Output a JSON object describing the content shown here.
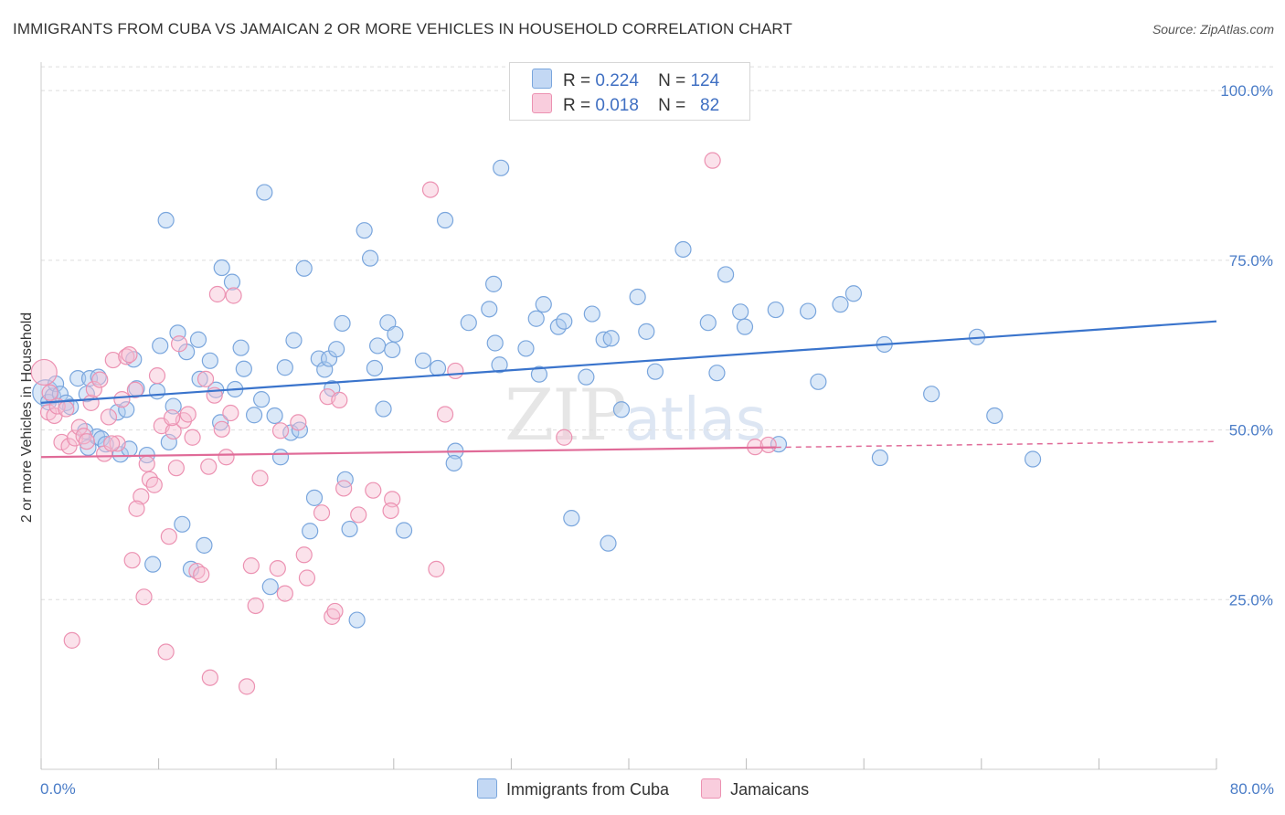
{
  "title": "IMMIGRANTS FROM CUBA VS JAMAICAN 2 OR MORE VEHICLES IN HOUSEHOLD CORRELATION CHART",
  "source": "Source: ZipAtlas.com",
  "watermark": {
    "zip": "ZIP",
    "atlas": "atlas"
  },
  "legend": {
    "series1": {
      "r_label": "R =",
      "r_value": "0.224",
      "n_label": "N =",
      "n_value": "124"
    },
    "series2": {
      "r_label": "R =",
      "r_value": "0.018",
      "n_label": "N =",
      "n_value": "82"
    }
  },
  "colors": {
    "cuba_fill": "#aecbf0",
    "cuba_stroke": "#7aa6dd",
    "cuba_line": "#3a74cc",
    "jam_fill": "#f7bfd3",
    "jam_stroke": "#ec92b2",
    "jam_line": "#e06b98",
    "grid": "#dddddd",
    "tick_text": "#4a7cc7"
  },
  "chart_data": {
    "type": "scatter",
    "xlabel": "",
    "ylabel": "2 or more Vehicles in Household",
    "xlim": [
      0,
      80
    ],
    "ylim": [
      0,
      105
    ],
    "x_tick_labels": [
      "0.0%",
      "80.0%"
    ],
    "y_ticks": [
      25,
      50,
      75,
      100
    ],
    "y_tick_labels": [
      "25.0%",
      "50.0%",
      "75.0%",
      "100.0%"
    ],
    "grid": true,
    "legend_position": "bottom",
    "series": [
      {
        "name": "Immigrants from Cuba",
        "trend": {
          "x0": 0,
          "y0": 54.0,
          "x1": 80,
          "y1": 66.0,
          "solid_until": 80
        },
        "points": [
          [
            0.3,
            55.5
          ],
          [
            0.5,
            54.1
          ],
          [
            0.8,
            55.0
          ],
          [
            1.0,
            56.8
          ],
          [
            1.3,
            55.3
          ],
          [
            1.7,
            54.0
          ],
          [
            2.0,
            53.4
          ],
          [
            2.5,
            57.6
          ],
          [
            3.1,
            55.3
          ],
          [
            3.3,
            57.6
          ],
          [
            3.9,
            57.8
          ],
          [
            3.0,
            49.8
          ],
          [
            3.2,
            47.4
          ],
          [
            3.8,
            49.0
          ],
          [
            4.1,
            48.7
          ],
          [
            4.4,
            47.9
          ],
          [
            5.2,
            52.6
          ],
          [
            5.4,
            46.4
          ],
          [
            5.8,
            53.0
          ],
          [
            6.0,
            47.2
          ],
          [
            6.3,
            60.4
          ],
          [
            6.5,
            56.1
          ],
          [
            7.2,
            46.3
          ],
          [
            7.6,
            30.2
          ],
          [
            7.9,
            55.7
          ],
          [
            8.1,
            62.4
          ],
          [
            8.5,
            80.9
          ],
          [
            8.7,
            48.2
          ],
          [
            9.0,
            53.5
          ],
          [
            9.3,
            64.3
          ],
          [
            9.6,
            36.1
          ],
          [
            9.9,
            61.5
          ],
          [
            10.2,
            29.5
          ],
          [
            10.7,
            63.3
          ],
          [
            10.8,
            57.5
          ],
          [
            11.1,
            33.0
          ],
          [
            11.5,
            60.2
          ],
          [
            11.9,
            55.9
          ],
          [
            12.2,
            51.1
          ],
          [
            12.3,
            73.9
          ],
          [
            13.0,
            71.8
          ],
          [
            13.2,
            56.0
          ],
          [
            13.6,
            62.1
          ],
          [
            13.8,
            59.0
          ],
          [
            14.5,
            52.2
          ],
          [
            15.0,
            54.5
          ],
          [
            15.2,
            85.0
          ],
          [
            15.6,
            26.9
          ],
          [
            15.9,
            52.1
          ],
          [
            16.3,
            46.0
          ],
          [
            16.6,
            59.2
          ],
          [
            17.0,
            49.6
          ],
          [
            17.2,
            63.2
          ],
          [
            17.6,
            50.0
          ],
          [
            17.9,
            73.8
          ],
          [
            18.3,
            35.1
          ],
          [
            18.6,
            40.0
          ],
          [
            18.9,
            60.5
          ],
          [
            19.3,
            58.9
          ],
          [
            19.6,
            60.5
          ],
          [
            19.8,
            56.1
          ],
          [
            20.1,
            61.9
          ],
          [
            20.5,
            65.7
          ],
          [
            20.7,
            42.7
          ],
          [
            21.0,
            35.4
          ],
          [
            21.5,
            22.0
          ],
          [
            22.0,
            79.4
          ],
          [
            22.4,
            75.3
          ],
          [
            22.7,
            59.1
          ],
          [
            22.9,
            62.4
          ],
          [
            23.3,
            53.1
          ],
          [
            23.6,
            65.8
          ],
          [
            23.9,
            61.8
          ],
          [
            24.1,
            64.1
          ],
          [
            24.7,
            35.2
          ],
          [
            26.0,
            60.2
          ],
          [
            27.0,
            59.1
          ],
          [
            27.5,
            80.9
          ],
          [
            28.2,
            46.9
          ],
          [
            28.1,
            45.1
          ],
          [
            29.1,
            65.8
          ],
          [
            30.8,
            71.5
          ],
          [
            30.5,
            67.8
          ],
          [
            30.9,
            62.8
          ],
          [
            31.2,
            59.6
          ],
          [
            31.3,
            88.6
          ],
          [
            33.0,
            62.0
          ],
          [
            33.9,
            58.2
          ],
          [
            33.7,
            66.4
          ],
          [
            34.2,
            68.5
          ],
          [
            35.2,
            65.2
          ],
          [
            35.6,
            66.0
          ],
          [
            36.1,
            37.0
          ],
          [
            37.1,
            57.8
          ],
          [
            37.5,
            67.1
          ],
          [
            38.3,
            63.3
          ],
          [
            38.6,
            33.3
          ],
          [
            38.8,
            63.5
          ],
          [
            39.5,
            53.0
          ],
          [
            40.6,
            69.6
          ],
          [
            41.2,
            64.5
          ],
          [
            41.8,
            58.6
          ],
          [
            43.7,
            76.6
          ],
          [
            45.4,
            65.8
          ],
          [
            46.0,
            58.4
          ],
          [
            46.6,
            72.9
          ],
          [
            47.6,
            67.4
          ],
          [
            47.9,
            65.2
          ],
          [
            50.2,
            47.9
          ],
          [
            50.0,
            67.7
          ],
          [
            52.2,
            67.5
          ],
          [
            52.9,
            57.1
          ],
          [
            54.4,
            68.5
          ],
          [
            55.3,
            70.1
          ],
          [
            57.1,
            45.9
          ],
          [
            57.4,
            62.6
          ],
          [
            60.6,
            55.3
          ],
          [
            63.7,
            63.7
          ],
          [
            64.9,
            52.1
          ],
          [
            67.5,
            45.7
          ]
        ]
      },
      {
        "name": "Jamaicans",
        "trend": {
          "x0": 0,
          "y0": 46.0,
          "x1": 80,
          "y1": 48.3,
          "solid_until": 50
        },
        "points": [
          [
            0.2,
            58.5
          ],
          [
            0.5,
            52.6
          ],
          [
            0.6,
            55.5
          ],
          [
            0.9,
            52.1
          ],
          [
            1.1,
            53.5
          ],
          [
            1.4,
            48.2
          ],
          [
            1.7,
            53.1
          ],
          [
            1.9,
            47.6
          ],
          [
            2.1,
            19.0
          ],
          [
            2.3,
            48.8
          ],
          [
            2.6,
            50.4
          ],
          [
            2.9,
            49.1
          ],
          [
            3.1,
            48.3
          ],
          [
            3.4,
            54.0
          ],
          [
            3.6,
            56.0
          ],
          [
            4.0,
            57.4
          ],
          [
            4.3,
            46.5
          ],
          [
            4.6,
            51.9
          ],
          [
            4.9,
            60.3
          ],
          [
            5.2,
            48.0
          ],
          [
            5.5,
            54.5
          ],
          [
            5.8,
            60.8
          ],
          [
            6.0,
            61.1
          ],
          [
            6.2,
            30.8
          ],
          [
            6.4,
            55.9
          ],
          [
            6.8,
            40.2
          ],
          [
            7.0,
            25.4
          ],
          [
            7.2,
            45.0
          ],
          [
            7.4,
            42.7
          ],
          [
            7.7,
            41.9
          ],
          [
            7.9,
            58.0
          ],
          [
            8.2,
            50.6
          ],
          [
            8.5,
            17.3
          ],
          [
            8.7,
            34.3
          ],
          [
            9.0,
            49.8
          ],
          [
            9.2,
            44.4
          ],
          [
            9.4,
            62.7
          ],
          [
            9.7,
            51.4
          ],
          [
            10.0,
            52.3
          ],
          [
            10.3,
            48.9
          ],
          [
            10.6,
            29.2
          ],
          [
            10.9,
            28.7
          ],
          [
            11.2,
            57.5
          ],
          [
            11.5,
            13.5
          ],
          [
            11.8,
            55.1
          ],
          [
            12.0,
            70.0
          ],
          [
            12.3,
            50.1
          ],
          [
            12.6,
            46.0
          ],
          [
            12.9,
            52.5
          ],
          [
            13.1,
            69.8
          ],
          [
            14.0,
            12.2
          ],
          [
            14.3,
            30.0
          ],
          [
            14.6,
            24.1
          ],
          [
            14.9,
            42.9
          ],
          [
            16.1,
            29.6
          ],
          [
            16.3,
            49.9
          ],
          [
            16.6,
            25.9
          ],
          [
            17.5,
            51.1
          ],
          [
            17.9,
            31.6
          ],
          [
            18.1,
            28.2
          ],
          [
            19.1,
            37.8
          ],
          [
            19.5,
            54.9
          ],
          [
            19.8,
            22.5
          ],
          [
            20.0,
            23.3
          ],
          [
            20.3,
            54.4
          ],
          [
            20.6,
            41.4
          ],
          [
            21.6,
            37.5
          ],
          [
            22.6,
            41.1
          ],
          [
            23.9,
            39.8
          ],
          [
            23.8,
            38.1
          ],
          [
            26.5,
            85.4
          ],
          [
            26.9,
            29.5
          ],
          [
            27.5,
            52.3
          ],
          [
            28.2,
            58.7
          ],
          [
            35.6,
            48.9
          ],
          [
            45.7,
            89.7
          ],
          [
            48.6,
            47.5
          ],
          [
            49.5,
            47.8
          ],
          [
            4.8,
            48.0
          ],
          [
            6.5,
            38.4
          ],
          [
            8.9,
            51.8
          ],
          [
            11.4,
            44.6
          ]
        ]
      }
    ]
  }
}
